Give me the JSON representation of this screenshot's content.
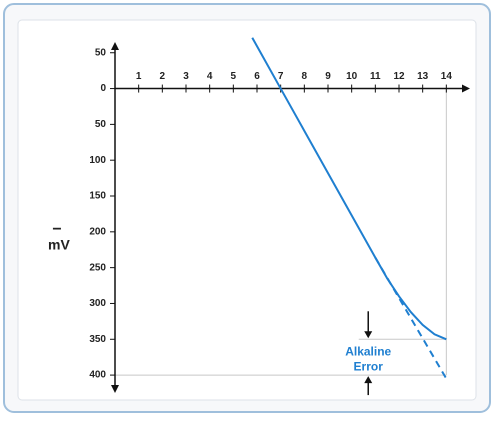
{
  "chart_data": {
    "type": "line",
    "y_label": "mV",
    "y_label_sign": "−",
    "annotation": [
      "Alkaline",
      "Error"
    ],
    "xlim": [
      0,
      15
    ],
    "ylim": [
      -425,
      65
    ],
    "xticks": [
      1,
      2,
      3,
      4,
      5,
      6,
      7,
      8,
      9,
      10,
      11,
      12,
      13,
      14
    ],
    "yticks": [
      {
        "value": -400,
        "label": "400"
      },
      {
        "value": -350,
        "label": "350"
      },
      {
        "value": -300,
        "label": "300"
      },
      {
        "value": -250,
        "label": "250"
      },
      {
        "value": -200,
        "label": "200"
      },
      {
        "value": -150,
        "label": "150"
      },
      {
        "value": -100,
        "label": "100"
      },
      {
        "value": -50,
        "label": "50"
      },
      0,
      50
    ],
    "series": [
      {
        "color": "#1f7fd0",
        "style": "solid",
        "x": [
          5.8,
          7,
          8,
          9,
          10,
          11,
          11.5,
          12,
          12.5,
          13,
          13.5,
          14
        ],
        "values": [
          71,
          0,
          -59,
          -118,
          -177,
          -236,
          -265,
          -290,
          -312,
          -330,
          -343,
          -350
        ]
      },
      {
        "color": "#1f7fd0",
        "style": "dashed",
        "x": [
          11,
          14
        ],
        "values": [
          -236,
          -405
        ]
      }
    ]
  }
}
